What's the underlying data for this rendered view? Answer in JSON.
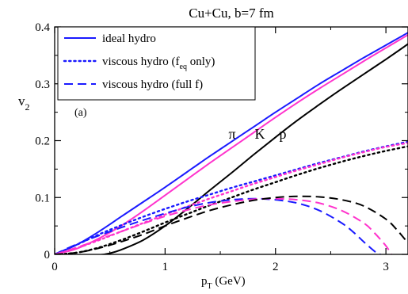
{
  "chart_data": {
    "type": "line",
    "title": "Cu+Cu, b=7 fm",
    "xlabel": "p",
    "xlabel_sub": "T",
    "xlabel_unit": " (GeV)",
    "ylabel": "v",
    "ylabel_sub": "2",
    "panel_label": "(a)",
    "xlim": [
      0,
      3.2
    ],
    "ylim": [
      0,
      0.4
    ],
    "x_ticks": [
      0,
      1,
      2,
      3
    ],
    "y_ticks": [
      0,
      0.1,
      0.2,
      0.3,
      0.4
    ],
    "x_tick_labels": [
      "0",
      "1",
      "2",
      "3"
    ],
    "y_tick_labels": [
      "0",
      "0.1",
      "0.2",
      "0.3",
      "0.4"
    ],
    "grid": false,
    "legend_position": "top-left",
    "legend": [
      {
        "label": "ideal hydro",
        "style": "solid"
      },
      {
        "label_prefix": "viscous hydro (f",
        "label_sub": "eq",
        "label_suffix": " only)",
        "style": "dotted"
      },
      {
        "label": "viscous hydro (full f)",
        "style": "dashed"
      }
    ],
    "particle_labels": [
      {
        "text": "π",
        "x": 1.58,
        "y": 0.21
      },
      {
        "text": "K",
        "x": 1.78,
        "y": 0.21
      },
      {
        "text": "p",
        "x": 1.98,
        "y": 0.21
      }
    ],
    "colors": {
      "pion": "#1a1aff",
      "kaon": "#ff33cc",
      "proton": "#000000"
    },
    "series": [
      {
        "name": "π ideal hydro",
        "particle": "pion",
        "style": "solid",
        "x": [
          0,
          0.2,
          0.4,
          0.6,
          0.8,
          1.0,
          1.2,
          1.4,
          1.6,
          1.8,
          2.0,
          2.2,
          2.4,
          2.6,
          2.8,
          3.0,
          3.2
        ],
        "y": [
          0,
          0.017,
          0.04,
          0.066,
          0.092,
          0.118,
          0.145,
          0.172,
          0.198,
          0.224,
          0.25,
          0.275,
          0.3,
          0.323,
          0.346,
          0.368,
          0.39
        ]
      },
      {
        "name": "K ideal hydro",
        "particle": "kaon",
        "style": "solid",
        "x": [
          0,
          0.2,
          0.4,
          0.6,
          0.8,
          1.0,
          1.2,
          1.4,
          1.6,
          1.8,
          2.0,
          2.2,
          2.4,
          2.6,
          2.8,
          3.0,
          3.2
        ],
        "y": [
          0,
          0.01,
          0.028,
          0.05,
          0.076,
          0.104,
          0.132,
          0.16,
          0.187,
          0.214,
          0.241,
          0.267,
          0.292,
          0.316,
          0.34,
          0.363,
          0.386
        ]
      },
      {
        "name": "p ideal hydro",
        "particle": "proton",
        "style": "solid",
        "x": [
          0,
          0.2,
          0.4,
          0.5,
          0.6,
          0.8,
          1.0,
          1.2,
          1.4,
          1.6,
          1.8,
          2.0,
          2.2,
          2.4,
          2.6,
          2.8,
          3.0,
          3.2
        ],
        "y": [
          0,
          -0.001,
          -0.001,
          0.002,
          0.008,
          0.025,
          0.05,
          0.08,
          0.112,
          0.143,
          0.175,
          0.206,
          0.236,
          0.264,
          0.291,
          0.317,
          0.343,
          0.37
        ]
      },
      {
        "name": "π viscous hydro (f_eq only)",
        "particle": "pion",
        "style": "dotted",
        "x": [
          0,
          0.2,
          0.4,
          0.6,
          0.8,
          1.0,
          1.2,
          1.4,
          1.6,
          1.8,
          2.0,
          2.2,
          2.4,
          2.6,
          2.8,
          3.0,
          3.2
        ],
        "y": [
          0,
          0.017,
          0.035,
          0.051,
          0.066,
          0.08,
          0.093,
          0.105,
          0.117,
          0.128,
          0.139,
          0.15,
          0.161,
          0.171,
          0.181,
          0.19,
          0.198
        ]
      },
      {
        "name": "K viscous hydro (f_eq only)",
        "particle": "kaon",
        "style": "dotted",
        "x": [
          0,
          0.2,
          0.4,
          0.6,
          0.8,
          1.0,
          1.2,
          1.4,
          1.6,
          1.8,
          2.0,
          2.2,
          2.4,
          2.6,
          2.8,
          3.0,
          3.2
        ],
        "y": [
          0,
          0.011,
          0.025,
          0.04,
          0.055,
          0.07,
          0.084,
          0.098,
          0.111,
          0.124,
          0.136,
          0.148,
          0.159,
          0.17,
          0.18,
          0.189,
          0.196
        ]
      },
      {
        "name": "p viscous hydro (f_eq only)",
        "particle": "proton",
        "style": "dotted",
        "x": [
          0,
          0.2,
          0.4,
          0.6,
          0.8,
          1.0,
          1.2,
          1.4,
          1.6,
          1.8,
          2.0,
          2.2,
          2.4,
          2.6,
          2.8,
          3.0,
          3.2
        ],
        "y": [
          0,
          0.003,
          0.012,
          0.025,
          0.04,
          0.056,
          0.071,
          0.086,
          0.1,
          0.114,
          0.127,
          0.14,
          0.152,
          0.163,
          0.173,
          0.182,
          0.19
        ]
      },
      {
        "name": "π viscous hydro (full f)",
        "particle": "pion",
        "style": "dashed",
        "x": [
          0,
          0.2,
          0.4,
          0.6,
          0.8,
          1.0,
          1.2,
          1.4,
          1.6,
          1.8,
          2.0,
          2.2,
          2.4,
          2.6,
          2.7,
          2.8,
          2.9,
          2.95
        ],
        "y": [
          0,
          0.018,
          0.033,
          0.047,
          0.06,
          0.072,
          0.083,
          0.091,
          0.096,
          0.098,
          0.096,
          0.09,
          0.077,
          0.055,
          0.04,
          0.022,
          0.005,
          0
        ]
      },
      {
        "name": "K viscous hydro (full f)",
        "particle": "kaon",
        "style": "dashed",
        "x": [
          0,
          0.2,
          0.4,
          0.6,
          0.8,
          1.0,
          1.2,
          1.4,
          1.6,
          1.8,
          2.0,
          2.2,
          2.4,
          2.6,
          2.8,
          2.9,
          3.0,
          3.05
        ],
        "y": [
          0,
          0.012,
          0.026,
          0.04,
          0.054,
          0.067,
          0.078,
          0.087,
          0.093,
          0.097,
          0.098,
          0.096,
          0.09,
          0.077,
          0.055,
          0.037,
          0.015,
          0
        ]
      },
      {
        "name": "p viscous hydro (full f)",
        "particle": "proton",
        "style": "dashed",
        "x": [
          0,
          0.2,
          0.4,
          0.6,
          0.8,
          1.0,
          1.2,
          1.4,
          1.6,
          1.8,
          2.0,
          2.2,
          2.4,
          2.6,
          2.8,
          3.0,
          3.1,
          3.2
        ],
        "y": [
          0,
          0.003,
          0.011,
          0.022,
          0.035,
          0.05,
          0.064,
          0.077,
          0.087,
          0.095,
          0.1,
          0.102,
          0.101,
          0.096,
          0.085,
          0.062,
          0.043,
          0.02
        ]
      }
    ]
  }
}
